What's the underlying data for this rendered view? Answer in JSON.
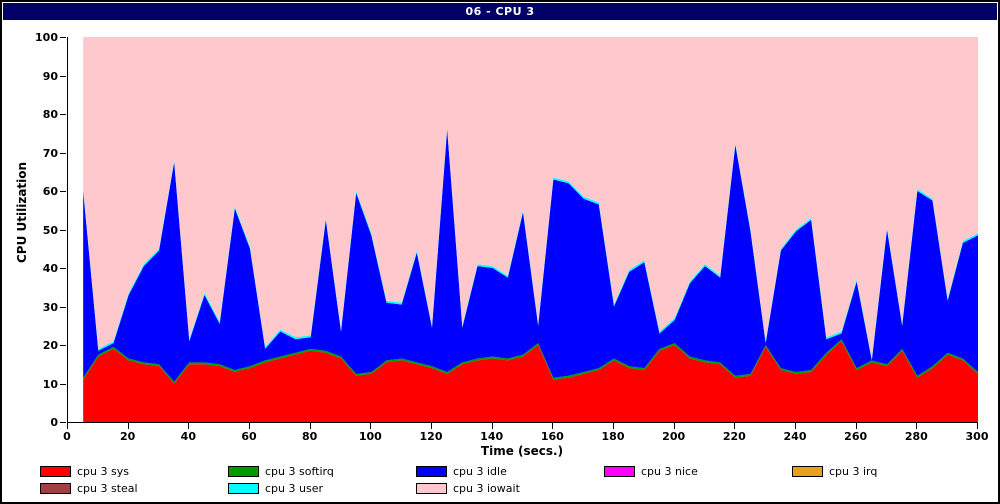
{
  "window": {
    "title": "06 - CPU 3"
  },
  "colors": {
    "titlebar_bg": "#000066",
    "titlebar_text": "#ffffff",
    "axis": "#000000",
    "plot_bg": "#ffffff",
    "sys": "#ff0000",
    "softirq": "#009900",
    "idle": "#0000ff",
    "nice": "#ff00ff",
    "irq": "#e8a020",
    "steal": "#a04040",
    "user": "#00ffff",
    "iowait": "#ffc8cc"
  },
  "chart_data": {
    "type": "area",
    "stacked": true,
    "title": "06 - CPU 3",
    "xlabel": "Time (secs.)",
    "ylabel": "CPU Utilization",
    "xlim": [
      0,
      300
    ],
    "ylim": [
      0,
      100
    ],
    "xticks": [
      0,
      20,
      40,
      60,
      80,
      100,
      120,
      140,
      160,
      180,
      200,
      220,
      240,
      260,
      280,
      300
    ],
    "yticks": [
      0,
      10,
      20,
      30,
      40,
      50,
      60,
      70,
      80,
      90,
      100
    ],
    "grid": false,
    "legend_position": "bottom",
    "x": [
      5,
      10,
      15,
      20,
      25,
      30,
      35,
      40,
      45,
      50,
      55,
      60,
      65,
      70,
      75,
      80,
      85,
      90,
      95,
      100,
      105,
      110,
      115,
      120,
      125,
      130,
      135,
      140,
      145,
      150,
      155,
      160,
      165,
      170,
      175,
      180,
      185,
      190,
      195,
      200,
      205,
      210,
      215,
      220,
      225,
      230,
      235,
      240,
      245,
      250,
      255,
      260,
      265,
      270,
      275,
      280,
      285,
      290,
      295,
      300
    ],
    "series": [
      {
        "name": "cpu 3 sys",
        "color": "#ff0000",
        "values": [
          11,
          17,
          19,
          16,
          15,
          14.5,
          10,
          15,
          15,
          14.5,
          13,
          14,
          15.5,
          16.5,
          17.5,
          18.5,
          18,
          16.5,
          12,
          12.5,
          15.5,
          16,
          15,
          14,
          12.5,
          15,
          16,
          16.5,
          16,
          17,
          20,
          11,
          11.5,
          12.5,
          13.5,
          16,
          14,
          13.5,
          18.5,
          20,
          16.5,
          15.5,
          15,
          11.5,
          12,
          19.5,
          13.5,
          12.5,
          13,
          17.5,
          21,
          13.5,
          15.5,
          14.5,
          18.5,
          11.5,
          14,
          17.5,
          16,
          12.5
        ]
      },
      {
        "name": "cpu 3 softirq",
        "color": "#009900",
        "constant": 0.5
      },
      {
        "name": "cpu 3 idle",
        "color": "#0000ff",
        "values": [
          48.5,
          1,
          1,
          16.5,
          25,
          29.5,
          57,
          5.5,
          17.5,
          10.5,
          42,
          30.5,
          3,
          6.5,
          3.5,
          3,
          34,
          6.5,
          47,
          35.5,
          15,
          14,
          28.5,
          10,
          63,
          9,
          24,
          23,
          21,
          37,
          4.5,
          51.5,
          50,
          45,
          42.5,
          13.5,
          24.5,
          27.5,
          4,
          6,
          19,
          24.5,
          22,
          60,
          37,
          0.5,
          30.5,
          36.5,
          39,
          3.5,
          1.5,
          22.5,
          0,
          35,
          6,
          48,
          43,
          13.5,
          30,
          35.5
        ]
      },
      {
        "name": "cpu 3 nice",
        "color": "#ff00ff",
        "constant": 0
      },
      {
        "name": "cpu 3 irq",
        "color": "#e8a020",
        "constant": 0
      },
      {
        "name": "cpu 3 steal",
        "color": "#a04040",
        "constant": 0
      },
      {
        "name": "cpu 3 user",
        "color": "#00ffff",
        "constant": 0.5
      },
      {
        "name": "cpu 3 iowait",
        "color": "#ffc8cc",
        "values": [
          39.5,
          81,
          79,
          66.5,
          59,
          55,
          32,
          78.5,
          66.5,
          74,
          44,
          54.5,
          80.5,
          76,
          78,
          77.5,
          47,
          76,
          40,
          51,
          68.5,
          69,
          55.5,
          75,
          23.5,
          75,
          59,
          59.5,
          62,
          45,
          74.5,
          36.5,
          37.5,
          41.5,
          43,
          69.5,
          60.5,
          58,
          76.5,
          73,
          63.5,
          59,
          62,
          27.5,
          50,
          79,
          55,
          50,
          47,
          78,
          76.5,
          63,
          84,
          49.5,
          74.5,
          39.5,
          42,
          68,
          53,
          51
        ]
      }
    ],
    "legend_order": [
      "cpu 3 sys",
      "cpu 3 softirq",
      "cpu 3 idle",
      "cpu 3 nice",
      "cpu 3 irq",
      "cpu 3 steal",
      "cpu 3 user",
      "cpu 3 iowait"
    ]
  }
}
